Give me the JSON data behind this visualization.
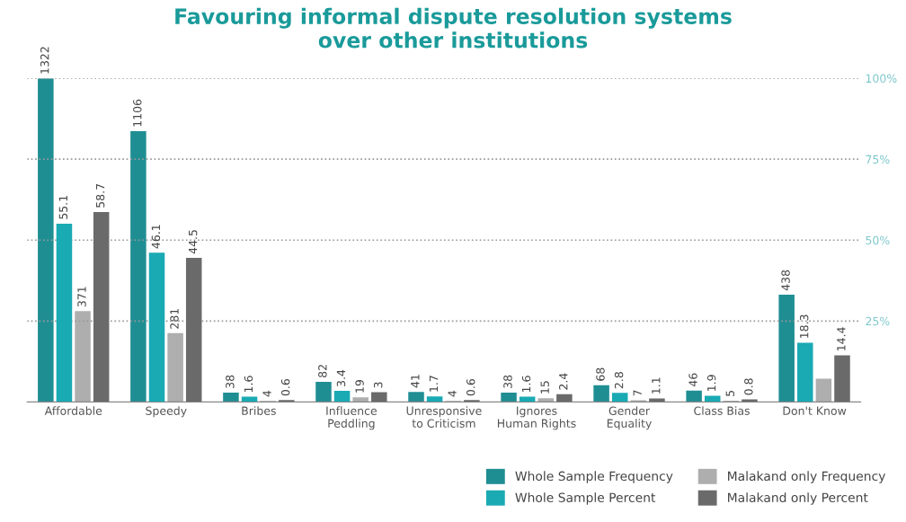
{
  "chart_data": {
    "type": "bar",
    "title": "Favouring informal dispute resolution systems\nover other institutions",
    "categories": [
      "Affordable",
      "Speedy",
      "Bribes",
      "Influence\nPeddling",
      "Unresponsive\nto Criticism",
      "Ignores\nHuman Rights",
      "Gender\nEquality",
      "Class Bias",
      "Don't Know"
    ],
    "series": [
      {
        "name": "Whole Sample Frequency",
        "color": "#1f8e93",
        "axis": "y2",
        "values": [
          1322,
          1106,
          38,
          82,
          41,
          38,
          68,
          46,
          438
        ],
        "value_labels": [
          "1322",
          "1106",
          "38",
          "82",
          "41",
          "38",
          "68",
          "46",
          "438"
        ]
      },
      {
        "name": "Whole Sample Percent",
        "color": "#1aaab4",
        "values": [
          55.1,
          46.1,
          1.6,
          3.4,
          1.7,
          1.6,
          2.8,
          1.9,
          18.3
        ],
        "value_labels": [
          "55.1",
          "46.1",
          "1.6",
          "3.4",
          "1.7",
          "1.6",
          "2.8",
          "1.9",
          "18.3"
        ]
      },
      {
        "name": "Malakand only Frequency",
        "color": "#aeaeae",
        "axis": "y2",
        "values": [
          371,
          281,
          4,
          19,
          4,
          15,
          7,
          5,
          95
        ],
        "value_labels": [
          "371",
          "281",
          "4",
          "19",
          "4",
          "15",
          "7",
          "5",
          null
        ]
      },
      {
        "name": "Malakand only Percent",
        "color": "#6a6a6a",
        "values": [
          58.7,
          44.5,
          0.6,
          3,
          0.6,
          2.4,
          1.1,
          0.8,
          14.4
        ],
        "value_labels": [
          "58.7",
          "44.5",
          "0.6",
          "3",
          "0.6",
          "2.4",
          "1.1",
          "0.8",
          "14.4"
        ]
      }
    ],
    "ylim": [
      0,
      100
    ],
    "yticks": [
      {
        "value": 25,
        "label": "25%"
      },
      {
        "value": 50,
        "label": "50%"
      },
      {
        "value": 75,
        "label": "75%"
      },
      {
        "value": 100,
        "label": "100%"
      }
    ],
    "y2lim": [
      0,
      1322
    ],
    "tick_labels": [
      "x",
      "y"
    ],
    "grid": "y",
    "legend": "bottom right"
  }
}
